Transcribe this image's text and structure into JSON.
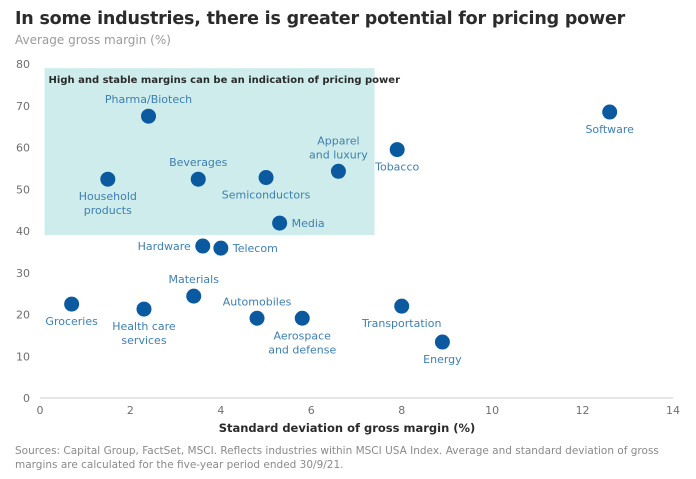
{
  "header": {
    "title": "In some industries, there is greater potential for pricing power",
    "subtitle": "Average gross margin (%)"
  },
  "footer": {
    "sources": "Sources: Capital Group, FactSet, MSCI. Reflects industries within MSCI USA Index. Average and standard deviation of gross margins are calculated for the five-year period ended 30/9/21."
  },
  "colors": {
    "point": "#0b5aa0",
    "label": "#3f7fb0",
    "highlight_region": "#cdeceb",
    "axis": "#cccccc"
  },
  "chart_data": {
    "type": "scatter",
    "title": "In some industries, there is greater potential for pricing power",
    "ylabel": "Average gross margin (%)",
    "xlabel": "Standard deviation of gross margin (%)",
    "xlim": [
      0,
      14
    ],
    "ylim": [
      0,
      80
    ],
    "xticks": [
      0,
      2,
      4,
      6,
      8,
      10,
      12,
      14
    ],
    "yticks": [
      0,
      10,
      20,
      30,
      40,
      50,
      60,
      70,
      80
    ],
    "grid": false,
    "legend": "none",
    "highlight_region": {
      "x": [
        0.1,
        7.4
      ],
      "y": [
        39,
        79
      ],
      "annotation": "High and stable margins can be an indication of pricing power"
    },
    "points": [
      {
        "name": "Pharma/Biotech",
        "label_lines": [
          "Pharma/Biotech"
        ],
        "x": 2.4,
        "y": 67.5,
        "label_pos": "above"
      },
      {
        "name": "Household products",
        "label_lines": [
          "Household",
          "products"
        ],
        "x": 1.5,
        "y": 52.4,
        "label_pos": "below"
      },
      {
        "name": "Beverages",
        "label_lines": [
          "Beverages"
        ],
        "x": 3.5,
        "y": 52.4,
        "label_pos": "above"
      },
      {
        "name": "Semiconductors",
        "label_lines": [
          "Semiconductors"
        ],
        "x": 5.0,
        "y": 52.8,
        "label_pos": "below"
      },
      {
        "name": "Apparel and luxury",
        "label_lines": [
          "Apparel",
          "and luxury"
        ],
        "x": 6.6,
        "y": 54.3,
        "label_pos": "above"
      },
      {
        "name": "Tobacco",
        "label_lines": [
          "Tobacco"
        ],
        "x": 7.9,
        "y": 59.5,
        "label_pos": "below"
      },
      {
        "name": "Software",
        "label_lines": [
          "Software"
        ],
        "x": 12.6,
        "y": 68.5,
        "label_pos": "below"
      },
      {
        "name": "Media",
        "label_lines": [
          "Media"
        ],
        "x": 5.3,
        "y": 41.9,
        "label_pos": "right"
      },
      {
        "name": "Hardware",
        "label_lines": [
          "Hardware"
        ],
        "x": 3.6,
        "y": 36.4,
        "label_pos": "left"
      },
      {
        "name": "Telecom",
        "label_lines": [
          "Telecom"
        ],
        "x": 4.0,
        "y": 35.9,
        "label_pos": "right"
      },
      {
        "name": "Groceries",
        "label_lines": [
          "Groceries"
        ],
        "x": 0.7,
        "y": 22.5,
        "label_pos": "below"
      },
      {
        "name": "Health care services",
        "label_lines": [
          "Health care",
          "services"
        ],
        "x": 2.3,
        "y": 21.3,
        "label_pos": "below"
      },
      {
        "name": "Materials",
        "label_lines": [
          "Materials"
        ],
        "x": 3.4,
        "y": 24.4,
        "label_pos": "above"
      },
      {
        "name": "Automobiles",
        "label_lines": [
          "Automobiles"
        ],
        "x": 4.8,
        "y": 19.1,
        "label_pos": "above"
      },
      {
        "name": "Aerospace and defense",
        "label_lines": [
          "Aerospace",
          "and defense"
        ],
        "x": 5.8,
        "y": 19.1,
        "label_pos": "below"
      },
      {
        "name": "Transportation",
        "label_lines": [
          "Transportation"
        ],
        "x": 8.0,
        "y": 22.0,
        "label_pos": "below"
      },
      {
        "name": "Energy",
        "label_lines": [
          "Energy"
        ],
        "x": 8.9,
        "y": 13.4,
        "label_pos": "below"
      }
    ]
  }
}
